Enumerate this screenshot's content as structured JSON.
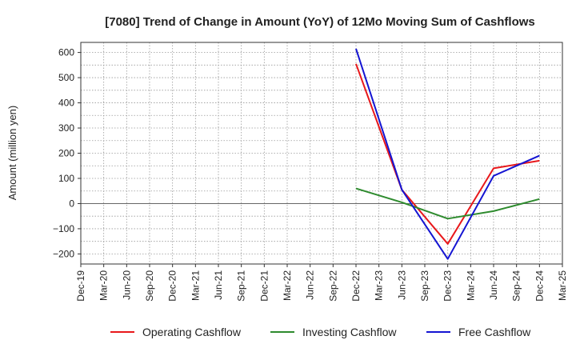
{
  "chart_data": {
    "type": "line",
    "title": "[7080]  Trend of Change in Amount (YoY) of 12Mo Moving Sum of Cashflows",
    "xlabel": "",
    "ylabel": "Amount (million yen)",
    "categories": [
      "Dec-19",
      "Mar-20",
      "Jun-20",
      "Sep-20",
      "Dec-20",
      "Mar-21",
      "Jun-21",
      "Sep-21",
      "Dec-21",
      "Mar-22",
      "Jun-22",
      "Sep-22",
      "Dec-22",
      "Mar-23",
      "Jun-23",
      "Sep-23",
      "Dec-23",
      "Mar-24",
      "Jun-24",
      "Sep-24",
      "Dec-24",
      "Mar-25"
    ],
    "ylim": [
      -240,
      640
    ],
    "yticks": [
      -200,
      -100,
      0,
      100,
      200,
      300,
      400,
      500,
      600
    ],
    "ytick_labels": [
      "−200",
      "−100",
      "0",
      "100",
      "200",
      "300",
      "400",
      "500",
      "600"
    ],
    "grid": true,
    "legend_position": "bottom",
    "series": [
      {
        "name": "Operating Cashflow",
        "color": "#e8181b",
        "values": [
          null,
          null,
          null,
          null,
          null,
          null,
          null,
          null,
          null,
          null,
          null,
          null,
          555,
          null,
          55,
          null,
          -160,
          null,
          140,
          null,
          170,
          null
        ]
      },
      {
        "name": "Investing Cashflow",
        "color": "#2e8b2e",
        "values": [
          null,
          null,
          null,
          null,
          null,
          null,
          null,
          null,
          null,
          null,
          null,
          null,
          60,
          null,
          5,
          null,
          -60,
          null,
          -30,
          null,
          18,
          null
        ]
      },
      {
        "name": "Free Cashflow",
        "color": "#1414d2",
        "values": [
          null,
          null,
          null,
          null,
          null,
          null,
          null,
          null,
          null,
          null,
          null,
          null,
          615,
          null,
          55,
          null,
          -220,
          null,
          110,
          null,
          190,
          null
        ]
      }
    ]
  }
}
